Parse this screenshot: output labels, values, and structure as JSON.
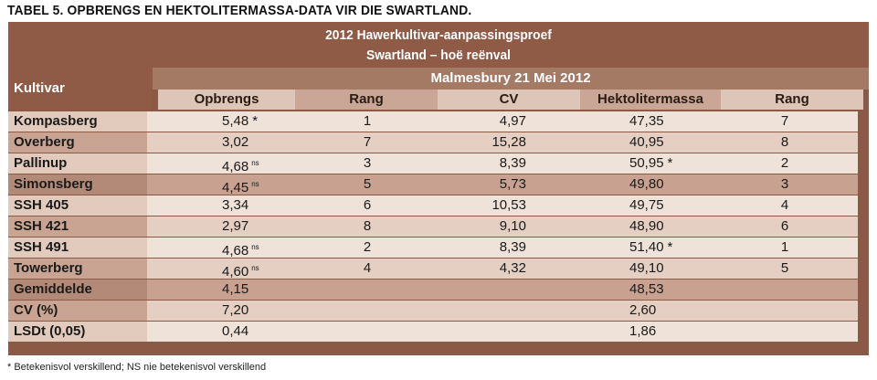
{
  "title": "TABEL 5. OPBRENGS EN HEKTOLITERMASSA-DATA VIR DIE SWARTLAND.",
  "header": {
    "line1": "2012 Hawerkultivar-aanpassingsproef",
    "line2": "Swartland –  hoë reënval",
    "kultivar": "Kultivar",
    "site": "Malmesbury 21 Mei 2012",
    "columns": [
      "Opbrengs",
      "Rang",
      "CV",
      "Hektolitermassa",
      "Rang"
    ]
  },
  "rows": [
    {
      "name": "Kompasberg",
      "opbrengs": "5,48",
      "opb_mark": "*",
      "rang1": "1",
      "cv": "4,97",
      "hekto": "47,35",
      "hekto_mark": "",
      "rang2": "7"
    },
    {
      "name": "Overberg",
      "opbrengs": "3,02",
      "opb_mark": "",
      "rang1": "7",
      "cv": "15,28",
      "hekto": "40,95",
      "hekto_mark": "",
      "rang2": "8"
    },
    {
      "name": "Pallinup",
      "opbrengs": "4,68",
      "opb_mark": "ns",
      "rang1": "3",
      "cv": "8,39",
      "hekto": "50,95",
      "hekto_mark": "*",
      "rang2": "2"
    },
    {
      "name": "Simonsberg",
      "opbrengs": "4,45",
      "opb_mark": "ns",
      "rang1": "5",
      "cv": "5,73",
      "hekto": "49,80",
      "hekto_mark": "",
      "rang2": "3"
    },
    {
      "name": "SSH 405",
      "opbrengs": "3,34",
      "opb_mark": "",
      "rang1": "6",
      "cv": "10,53",
      "hekto": "49,75",
      "hekto_mark": "",
      "rang2": "4"
    },
    {
      "name": "SSH 421",
      "opbrengs": "2,97",
      "opb_mark": "",
      "rang1": "8",
      "cv": "9,10",
      "hekto": "48,90",
      "hekto_mark": "",
      "rang2": "6"
    },
    {
      "name": "SSH 491",
      "opbrengs": "4,68",
      "opb_mark": "ns",
      "rang1": "2",
      "cv": "8,39",
      "hekto": "51,40",
      "hekto_mark": "*",
      "rang2": "1"
    },
    {
      "name": "Towerberg",
      "opbrengs": "4,60",
      "opb_mark": "ns",
      "rang1": "4",
      "cv": "4,32",
      "hekto": "49,10",
      "hekto_mark": "",
      "rang2": "5"
    },
    {
      "name": "Gemiddelde",
      "opbrengs": "4,15",
      "opb_mark": "",
      "rang1": "",
      "cv": "",
      "hekto": "48,53",
      "hekto_mark": "",
      "rang2": ""
    },
    {
      "name": "CV (%)",
      "opbrengs": "7,20",
      "opb_mark": "",
      "rang1": "",
      "cv": "",
      "hekto": "2,60",
      "hekto_mark": "",
      "rang2": ""
    },
    {
      "name": "LSDt (0,05)",
      "opbrengs": "0,44",
      "opb_mark": "",
      "rang1": "",
      "cv": "",
      "hekto": "1,86",
      "hekto_mark": "",
      "rang2": ""
    }
  ],
  "footnote": "* Betekenisvol verskillend; NS nie betekenisvol verskillend"
}
